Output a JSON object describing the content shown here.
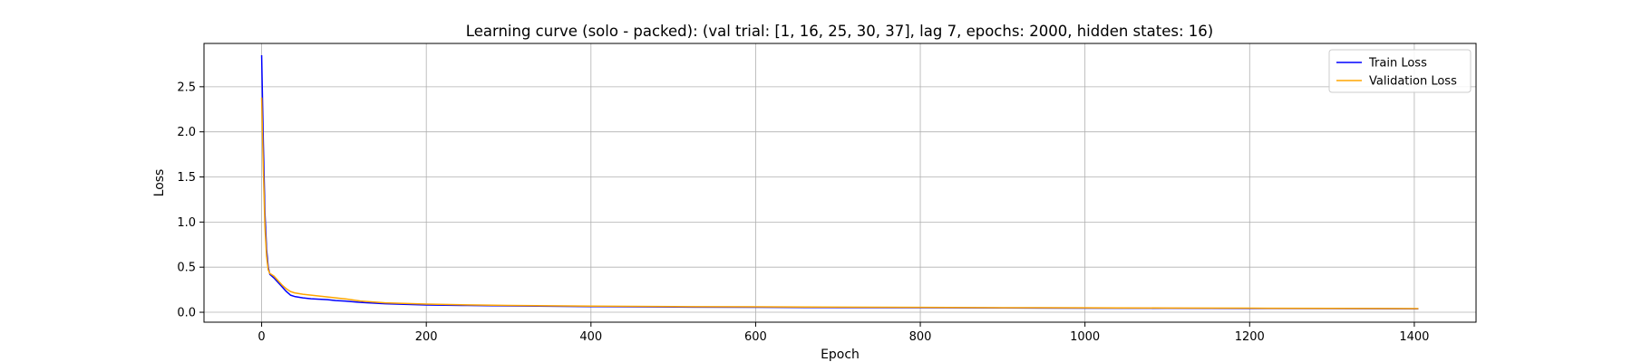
{
  "chart_data": {
    "type": "line",
    "title": "Learning curve (solo - packed): (val trial: [1, 16, 25, 30, 37], lag 7, epochs: 2000, hidden states: 16)",
    "xlabel": "Epoch",
    "ylabel": "Loss",
    "xlim": [
      -70,
      1475
    ],
    "ylim": [
      -0.11,
      2.98
    ],
    "xticks": [
      0,
      200,
      400,
      600,
      800,
      1000,
      1200,
      1400
    ],
    "yticks": [
      0.0,
      0.5,
      1.0,
      1.5,
      2.0,
      2.5
    ],
    "xtick_labels": [
      "0",
      "200",
      "400",
      "600",
      "800",
      "1000",
      "1200",
      "1400"
    ],
    "ytick_labels": [
      "0.0",
      "0.5",
      "1.0",
      "1.5",
      "2.0",
      "2.5"
    ],
    "grid": true,
    "legend_position": "upper right",
    "series": [
      {
        "name": "Train Loss",
        "color": "#0000ff",
        "x": [
          0,
          2,
          4,
          6,
          8,
          10,
          15,
          20,
          25,
          30,
          35,
          40,
          50,
          60,
          70,
          80,
          90,
          100,
          120,
          150,
          200,
          250,
          300,
          400,
          500,
          600,
          700,
          800,
          900,
          1000,
          1100,
          1200,
          1300,
          1405
        ],
        "y": [
          2.85,
          1.9,
          1.1,
          0.7,
          0.5,
          0.42,
          0.38,
          0.33,
          0.28,
          0.23,
          0.19,
          0.175,
          0.16,
          0.15,
          0.145,
          0.14,
          0.13,
          0.125,
          0.11,
          0.095,
          0.08,
          0.075,
          0.07,
          0.063,
          0.058,
          0.055,
          0.052,
          0.05,
          0.048,
          0.046,
          0.044,
          0.042,
          0.04,
          0.038
        ]
      },
      {
        "name": "Validation Loss",
        "color": "#ffa500",
        "x": [
          0,
          2,
          4,
          6,
          8,
          10,
          15,
          20,
          25,
          30,
          35,
          40,
          50,
          60,
          70,
          80,
          90,
          100,
          120,
          150,
          200,
          250,
          300,
          400,
          500,
          600,
          700,
          800,
          900,
          1000,
          1100,
          1200,
          1300,
          1405
        ],
        "y": [
          2.38,
          1.6,
          0.95,
          0.62,
          0.47,
          0.43,
          0.4,
          0.35,
          0.3,
          0.26,
          0.23,
          0.215,
          0.2,
          0.19,
          0.18,
          0.17,
          0.16,
          0.15,
          0.125,
          0.105,
          0.09,
          0.082,
          0.076,
          0.068,
          0.063,
          0.06,
          0.057,
          0.054,
          0.051,
          0.049,
          0.047,
          0.045,
          0.043,
          0.041
        ]
      }
    ]
  }
}
